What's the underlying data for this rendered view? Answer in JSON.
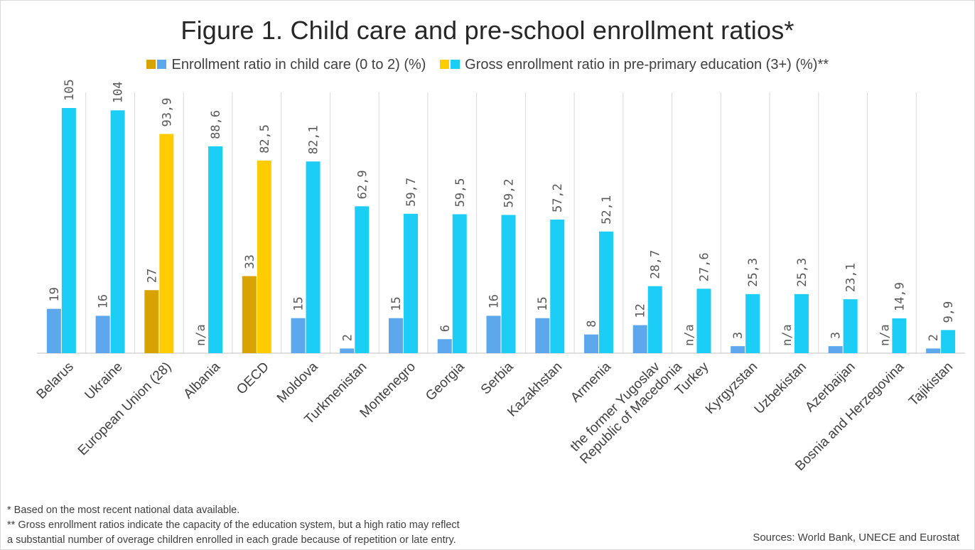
{
  "title": "Figure 1. Child care and pre-school enrollment ratios*",
  "legend": {
    "series1_label": "Enrollment ratio in child care (0 to 2) (%)",
    "series2_label": "Gross enrollment ratio in pre-primary education (3+) (%)**"
  },
  "colors": {
    "childcare": "#5da8ec",
    "childcare_highlight": "#d6a300",
    "preprimary": "#1ccdf5",
    "preprimary_highlight": "#ffcc00",
    "divider": "#d9d9d9",
    "axis": "#bfbfbf",
    "label": "#595959"
  },
  "chart_data": {
    "type": "bar",
    "title": "Figure 1. Child care and pre-school enrollment ratios*",
    "ylim": [
      0,
      110
    ],
    "grid": false,
    "legend_position": "top",
    "categories": [
      "Belarus",
      "Ukraine",
      "European Union (28)",
      "Albania",
      "OECD",
      "Moldova",
      "Turkmenistan",
      "Montenegro",
      "Georgia",
      "Serbia",
      "Kazakhstan",
      "Armenia",
      "the former Yugoslav Republic of Macedonia",
      "Turkey",
      "Kyrgyzstan",
      "Uzbekistan",
      "Azerbaijan",
      "Bosnia and Herzegovina",
      "Tajikistan"
    ],
    "category_labels": [
      "Belarus",
      "Ukraine",
      "European Union (28)",
      "Albania",
      "OECD",
      "Moldova",
      "Turkmenistan",
      "Montenegro",
      "Georgia",
      "Serbia",
      "Kazakhstan",
      "Armenia",
      [
        "the former Yugoslav",
        "Republic of Macedonia"
      ],
      "Turkey",
      "Kyrgyzstan",
      "Uzbekistan",
      "Azerbaijan",
      "Bosnia and Herzegovina",
      "Tajikistan"
    ],
    "highlighted": [
      false,
      false,
      true,
      false,
      true,
      false,
      false,
      false,
      false,
      false,
      false,
      false,
      false,
      false,
      false,
      false,
      false,
      false,
      false
    ],
    "series": [
      {
        "name": "Enrollment ratio in child care (0 to 2) (%)",
        "values": [
          19,
          16,
          27,
          null,
          33,
          15,
          2,
          15,
          6,
          16,
          15,
          8,
          12,
          null,
          3,
          null,
          3,
          null,
          2
        ],
        "labels": [
          "19",
          "16",
          "27",
          "n/a",
          "33",
          "15",
          "2",
          "15",
          "6",
          "16",
          "15",
          "8",
          "12",
          "n/a",
          "3",
          "n/a",
          "3",
          "n/a",
          "2"
        ]
      },
      {
        "name": "Gross enrollment ratio in pre-primary education (3+) (%)**",
        "values": [
          105,
          104,
          93.9,
          88.6,
          82.5,
          82.1,
          62.9,
          59.7,
          59.5,
          59.2,
          57.2,
          52.1,
          28.7,
          27.6,
          25.3,
          25.3,
          23.1,
          14.9,
          9.9
        ],
        "labels": [
          "105",
          "104",
          "93,9",
          "88,6",
          "82,5",
          "82,1",
          "62,9",
          "59,7",
          "59,5",
          "59,2",
          "57,2",
          "52,1",
          "28,7",
          "27,6",
          "25,3",
          "25,3",
          "23,1",
          "14,9",
          "9,9"
        ]
      }
    ]
  },
  "notes": {
    "note1": "* Based on the most recent national data available.",
    "note2": "** Gross enrollment ratios indicate the capacity of the education system, but a high ratio may reflect",
    "note3": "a substantial number of overage children enrolled in each grade because of repetition or late entry."
  },
  "sources": "Sources: World Bank, UNECE and Eurostat"
}
